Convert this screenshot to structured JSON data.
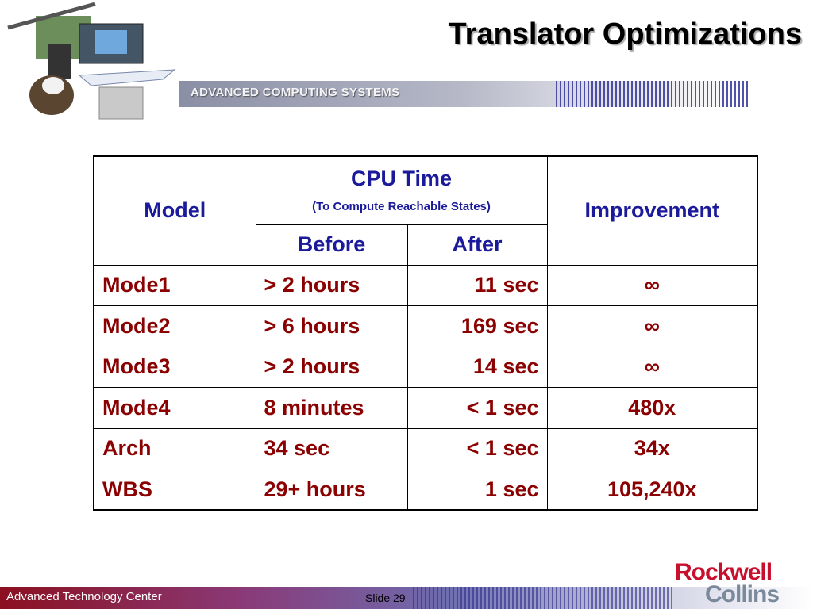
{
  "header": {
    "title": "Translator Optimizations",
    "banner": "ADVANCED COMPUTING SYSTEMS"
  },
  "table": {
    "columns": {
      "model": "Model",
      "cpu_time": "CPU Time",
      "cpu_time_note": "(To Compute Reachable States)",
      "before": "Before",
      "after": "After",
      "improvement": "Improvement"
    },
    "rows": [
      [
        "Mode1",
        "> 2 hours",
        "11 sec",
        "∞"
      ],
      [
        "Mode2",
        "> 6 hours",
        "169 sec",
        "∞"
      ],
      [
        "Mode3",
        "> 2 hours",
        "14 sec",
        "∞"
      ],
      [
        "Mode4",
        "8 minutes",
        "< 1 sec",
        "480x"
      ],
      [
        "Arch",
        "34 sec",
        "< 1 sec",
        "34x"
      ],
      [
        "WBS",
        "29+ hours",
        "1 sec",
        "105,240x"
      ]
    ]
  },
  "footer": {
    "left": "Advanced Technology Center",
    "slide": "Slide 29",
    "logo_top": "Rockwell",
    "logo_bottom": "Collins"
  }
}
